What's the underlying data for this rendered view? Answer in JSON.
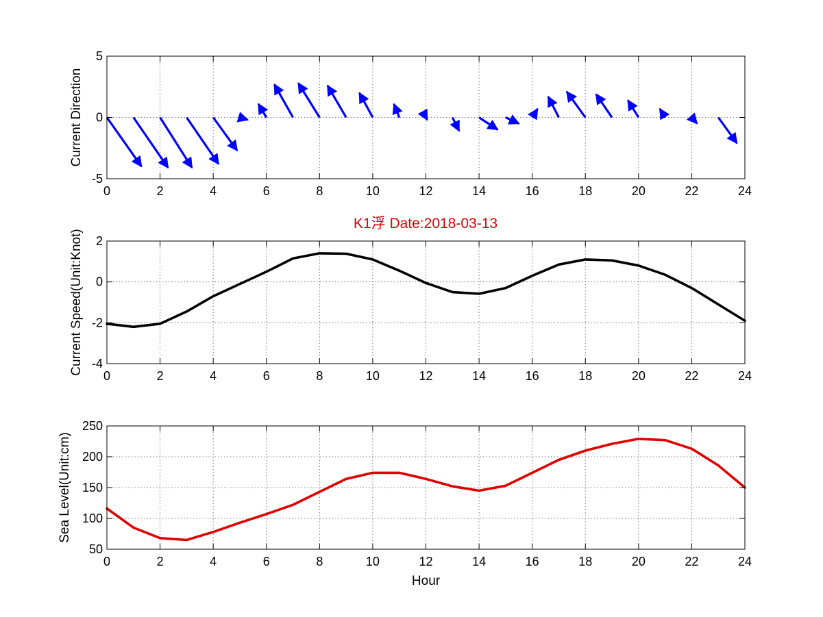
{
  "figure": {
    "title": "K1浮   Date:2018-03-13",
    "title_color": "#e00000",
    "background": "#ffffff"
  },
  "chart_data": [
    {
      "type": "quiver",
      "ylabel": "Current Direction",
      "xlabel": "",
      "xlim": [
        0,
        24
      ],
      "ylim": [
        -5,
        5
      ],
      "xticks": [
        0,
        2,
        4,
        6,
        8,
        10,
        12,
        14,
        16,
        18,
        20,
        22,
        24
      ],
      "yticks": [
        -5,
        0,
        5
      ],
      "grid": true,
      "color": "#0000ff",
      "x": [
        0,
        1,
        2,
        3,
        4,
        5,
        6,
        7,
        8,
        9,
        10,
        11,
        12,
        13,
        14,
        15,
        16,
        17,
        18,
        19,
        20,
        21,
        22,
        23
      ],
      "u": [
        1.3,
        1.3,
        1.2,
        1.2,
        0.9,
        0.3,
        -0.3,
        -0.7,
        -0.8,
        -0.7,
        -0.5,
        -0.2,
        0.05,
        0.25,
        0.7,
        0.5,
        0.2,
        -0.4,
        -0.7,
        -0.6,
        -0.4,
        -0.2,
        0.2,
        0.7
      ],
      "v": [
        -4.0,
        -4.1,
        -4.1,
        -3.8,
        -2.7,
        -0.2,
        1.1,
        2.7,
        2.8,
        2.6,
        2.0,
        1.1,
        -0.2,
        -1.1,
        -1.0,
        -0.5,
        0.7,
        1.7,
        2.1,
        1.9,
        1.4,
        0.7,
        -0.5,
        -2.1
      ]
    },
    {
      "type": "line",
      "ylabel": "Current Speed(Unit:Knot)",
      "xlabel": "",
      "xlim": [
        0,
        24
      ],
      "ylim": [
        -4,
        2
      ],
      "xticks": [
        0,
        2,
        4,
        6,
        8,
        10,
        12,
        14,
        16,
        18,
        20,
        22,
        24
      ],
      "yticks": [
        -4,
        -2,
        0,
        2
      ],
      "grid": true,
      "color": "#000000",
      "x": [
        0,
        1,
        2,
        3,
        4,
        5,
        6,
        7,
        8,
        9,
        10,
        11,
        12,
        13,
        14,
        15,
        16,
        17,
        18,
        19,
        20,
        21,
        22,
        23,
        24
      ],
      "y": [
        -2.05,
        -2.2,
        -2.05,
        -1.45,
        -0.7,
        -0.1,
        0.5,
        1.15,
        1.4,
        1.38,
        1.1,
        0.55,
        -0.05,
        -0.5,
        -0.58,
        -0.3,
        0.3,
        0.85,
        1.1,
        1.05,
        0.8,
        0.35,
        -0.3,
        -1.1,
        -1.9
      ]
    },
    {
      "type": "line",
      "ylabel": "Sea Level(Unit:cm)",
      "xlabel": "Hour",
      "xlim": [
        0,
        24
      ],
      "ylim": [
        50,
        250
      ],
      "xticks": [
        0,
        2,
        4,
        6,
        8,
        10,
        12,
        14,
        16,
        18,
        20,
        22,
        24
      ],
      "yticks": [
        50,
        100,
        150,
        200,
        250
      ],
      "grid": true,
      "color": "#e00000",
      "x": [
        0,
        1,
        2,
        3,
        4,
        5,
        6,
        7,
        8,
        9,
        10,
        11,
        12,
        13,
        14,
        15,
        16,
        17,
        18,
        19,
        20,
        21,
        22,
        23,
        24
      ],
      "y": [
        116,
        85,
        68,
        65,
        78,
        93,
        107,
        122,
        143,
        164,
        174,
        174,
        164,
        152,
        145,
        153,
        174,
        195,
        210,
        221,
        229,
        227,
        213,
        186,
        150
      ]
    }
  ]
}
